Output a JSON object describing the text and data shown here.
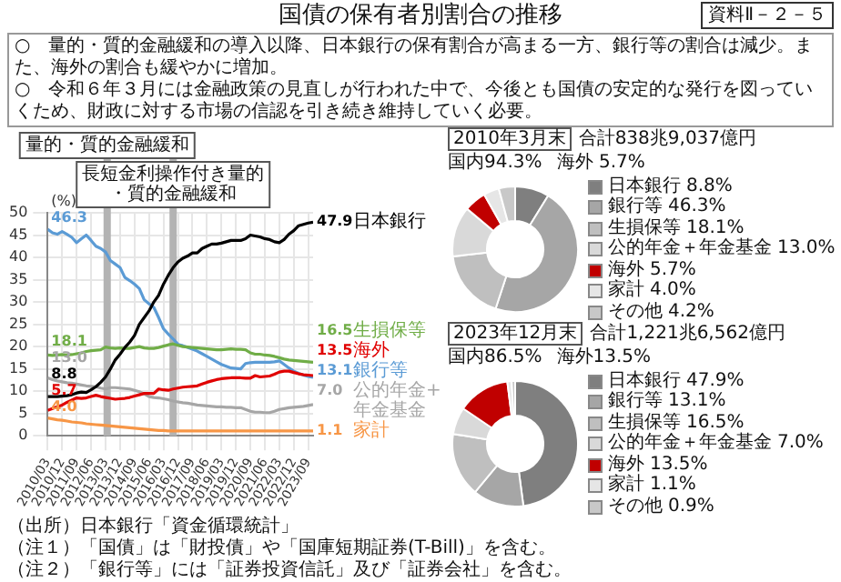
{
  "chart_data": [
    {
      "type": "line",
      "title": "国債の保有者別割合の推移",
      "annotations": [
        "資料Ⅱ－２－５",
        "○　量的・質的金融緩和の導入以降、日本銀行の保有割合が高まる一方、銀行等の割合は減少。また、海外の割合も緩やかに増加。",
        "○　令和６年３月には金融政策の見直しが行われた中で、今後とも国債の安定的な発行を図っていくため、財政に対する市場の信認を引き続き維持していく必要。",
        "（出所）日本銀行「資金循環統計」",
        "（注１）「国債」は「財投債」や「国庫短期証券(T-Bill)」を含む。",
        "（注２）「銀行等」には「証券投資信託」及び「証券会社」を含む。"
      ],
      "ylabel": "(%)",
      "x": [
        "2010-03",
        "2010-06",
        "2010-09",
        "2010-12",
        "2011-03",
        "2011-06",
        "2011-09",
        "2011-12",
        "2012-03",
        "2012-06",
        "2012-09",
        "2012-12",
        "2013-03",
        "2013-06",
        "2013-09",
        "2013-12",
        "2014-03",
        "2014-06",
        "2014-09",
        "2014-12",
        "2015-03",
        "2015-06",
        "2015-09",
        "2015-12",
        "2016-03",
        "2016-06",
        "2016-09",
        "2016-12",
        "2017-03",
        "2017-06",
        "2017-09",
        "2017-12",
        "2018-03",
        "2018-06",
        "2018-09",
        "2018-12",
        "2019-03",
        "2019-06",
        "2019-09",
        "2019-12",
        "2020-03",
        "2020-06",
        "2020-09",
        "2020-12",
        "2021-03",
        "2021-06",
        "2021-09",
        "2021-12",
        "2022-03",
        "2022-06",
        "2022-09",
        "2022-12",
        "2023-03",
        "2023-06",
        "2023-09",
        "2023-12"
      ],
      "xlim": [
        "2010-03",
        "2023-12"
      ],
      "xticks": [
        {
          "value": "2010-03",
          "label": "2010/03"
        },
        {
          "value": "2010-12",
          "label": "2010/12"
        },
        {
          "value": "2011-09",
          "label": "2011/09"
        },
        {
          "value": "2012-06",
          "label": "2012/06"
        },
        {
          "value": "2013-03",
          "label": "2013/03"
        },
        {
          "value": "2013-12",
          "label": "2013/12"
        },
        {
          "value": "2014-09",
          "label": "2014/09"
        },
        {
          "value": "2015-06",
          "label": "2015/06"
        },
        {
          "value": "2016-03",
          "label": "2016/03"
        },
        {
          "value": "2016-12",
          "label": "2016/12"
        },
        {
          "value": "2017-09",
          "label": "2017/09"
        },
        {
          "value": "2018-06",
          "label": "2018/06"
        },
        {
          "value": "2019-03",
          "label": "2019/03"
        },
        {
          "value": "2019-12",
          "label": "2019/12"
        },
        {
          "value": "2020-09",
          "label": "2020/09"
        },
        {
          "value": "2021-06",
          "label": "2021/06"
        },
        {
          "value": "2022-03",
          "label": "2022/03"
        },
        {
          "value": "2022-12",
          "label": "2022/12"
        },
        {
          "value": "2023-09",
          "label": "2023/09"
        }
      ],
      "ylim": [
        0,
        50
      ],
      "yticks": [
        0,
        5,
        10,
        15,
        20,
        25,
        30,
        35,
        40,
        45,
        50
      ],
      "grid": true,
      "ref_lines": [
        {
          "axis": "x",
          "value": "2013-04",
          "label": "量的・質的金融緩和",
          "color": "#b3b3b3"
        },
        {
          "axis": "x",
          "value": "2016-09",
          "label": "長短金利操作付き量的・質的金融緩和",
          "color": "#b3b3b3"
        }
      ],
      "series": [
        {
          "name": "日本銀行",
          "color": "#000000",
          "values": [
            8.8,
            8.8,
            8.8,
            8.9,
            9.0,
            9.2,
            9.6,
            9.8,
            9.7,
            10.3,
            11.0,
            12.0,
            13.2,
            15.0,
            17.0,
            18.3,
            19.8,
            21.0,
            22.5,
            25.0,
            26.5,
            28.0,
            30.0,
            31.5,
            34.0,
            36.0,
            37.7,
            39.0,
            39.8,
            40.3,
            41.0,
            41.0,
            42.0,
            42.5,
            43.0,
            43.0,
            43.2,
            43.5,
            43.8,
            43.8,
            43.8,
            44.2,
            45.0,
            44.8,
            44.6,
            44.2,
            44.0,
            43.5,
            43.3,
            44.0,
            45.2,
            46.0,
            47.1,
            47.4,
            47.7,
            47.9
          ],
          "value_labels": [
            "8.8",
            null,
            null,
            null,
            null,
            null,
            null,
            null,
            null,
            null,
            null,
            null,
            null,
            null,
            null,
            null,
            null,
            null,
            null,
            null,
            null,
            null,
            null,
            null,
            null,
            null,
            null,
            null,
            null,
            null,
            null,
            null,
            null,
            null,
            null,
            null,
            null,
            null,
            null,
            null,
            null,
            null,
            null,
            null,
            null,
            null,
            null,
            null,
            null,
            null,
            null,
            null,
            null,
            null,
            null,
            "47.9"
          ]
        },
        {
          "name": "生損保等",
          "color": "#70ad47",
          "values": [
            18.1,
            18.0,
            18.1,
            18.2,
            18.1,
            18.2,
            18.4,
            18.6,
            18.9,
            19.1,
            19.2,
            19.3,
            19.9,
            19.7,
            19.6,
            19.7,
            19.6,
            19.6,
            19.8,
            20.0,
            19.7,
            19.6,
            19.6,
            19.8,
            20.1,
            20.4,
            20.6,
            20.3,
            20.0,
            19.9,
            19.8,
            19.7,
            19.6,
            19.5,
            19.4,
            19.3,
            19.3,
            19.4,
            19.5,
            19.4,
            19.4,
            19.3,
            18.6,
            18.3,
            18.3,
            18.1,
            18.0,
            17.8,
            17.5,
            17.2,
            17.0,
            16.9,
            16.8,
            16.7,
            16.6,
            16.5
          ],
          "value_labels": [
            "18.1",
            null,
            null,
            null,
            null,
            null,
            null,
            null,
            null,
            null,
            null,
            null,
            null,
            null,
            null,
            null,
            null,
            null,
            null,
            null,
            null,
            null,
            null,
            null,
            null,
            null,
            null,
            null,
            null,
            null,
            null,
            null,
            null,
            null,
            null,
            null,
            null,
            null,
            null,
            null,
            null,
            null,
            null,
            null,
            null,
            null,
            null,
            null,
            null,
            null,
            null,
            null,
            null,
            null,
            null,
            "16.5"
          ]
        },
        {
          "name": "海外",
          "color": "#e00000",
          "values": [
            5.7,
            6.1,
            6.5,
            6.9,
            7.5,
            8.0,
            8.5,
            8.4,
            8.5,
            8.8,
            9.1,
            8.8,
            8.6,
            8.4,
            8.2,
            8.3,
            8.4,
            8.6,
            8.9,
            9.2,
            9.5,
            9.5,
            9.5,
            10.5,
            10.3,
            10.2,
            10.5,
            10.7,
            10.9,
            11.0,
            11.1,
            11.2,
            11.6,
            12.0,
            12.3,
            12.6,
            12.8,
            12.9,
            13.0,
            13.0,
            13.0,
            12.9,
            12.9,
            13.5,
            13.2,
            13.3,
            13.4,
            13.8,
            14.3,
            14.5,
            14.5,
            14.2,
            13.9,
            13.7,
            13.6,
            13.5
          ],
          "value_labels": [
            "5.7",
            null,
            null,
            null,
            null,
            null,
            null,
            null,
            null,
            null,
            null,
            null,
            null,
            null,
            null,
            null,
            null,
            null,
            null,
            null,
            null,
            null,
            null,
            null,
            null,
            null,
            null,
            null,
            null,
            null,
            null,
            null,
            null,
            null,
            null,
            null,
            null,
            null,
            null,
            null,
            null,
            null,
            null,
            null,
            null,
            null,
            null,
            null,
            null,
            null,
            null,
            null,
            null,
            null,
            null,
            "13.5"
          ]
        },
        {
          "name": "銀行等",
          "color": "#5b9bd5",
          "values": [
            46.3,
            45.5,
            45.2,
            45.8,
            45.2,
            44.5,
            43.3,
            44.2,
            45.0,
            43.8,
            42.5,
            42.0,
            41.2,
            39.3,
            38.5,
            37.7,
            35.5,
            34.8,
            34.0,
            33.0,
            30.5,
            29.6,
            28.8,
            26.5,
            24.0,
            22.8,
            21.7,
            20.5,
            20.2,
            19.8,
            19.4,
            19.0,
            18.4,
            17.8,
            17.2,
            16.6,
            16.0,
            15.6,
            15.2,
            15.1,
            15.0,
            16.2,
            16.4,
            16.5,
            16.5,
            16.5,
            16.5,
            16.6,
            16.8,
            16.0,
            15.2,
            14.5,
            14.0,
            13.6,
            13.3,
            13.1
          ],
          "value_labels": [
            "46.3",
            null,
            null,
            null,
            null,
            null,
            null,
            null,
            null,
            null,
            null,
            null,
            null,
            null,
            null,
            null,
            null,
            null,
            null,
            null,
            null,
            null,
            null,
            null,
            null,
            null,
            null,
            null,
            null,
            null,
            null,
            null,
            null,
            null,
            null,
            null,
            null,
            null,
            null,
            null,
            null,
            null,
            null,
            null,
            null,
            null,
            null,
            null,
            null,
            null,
            null,
            null,
            null,
            null,
            null,
            "13.1"
          ]
        },
        {
          "name": "公的年金+年金基金",
          "color": "#a6a6a6",
          "values": [
            13.0,
            12.6,
            12.3,
            12.1,
            11.9,
            11.8,
            11.6,
            11.4,
            11.2,
            11.1,
            11.0,
            10.7,
            10.5,
            10.8,
            10.8,
            10.7,
            10.6,
            10.5,
            10.2,
            9.9,
            9.4,
            8.8,
            8.6,
            8.5,
            8.3,
            8.1,
            7.8,
            7.6,
            7.4,
            7.3,
            7.1,
            6.9,
            6.8,
            6.7,
            6.6,
            6.5,
            6.5,
            6.4,
            6.4,
            6.3,
            6.3,
            5.9,
            5.5,
            5.3,
            5.3,
            5.2,
            5.2,
            5.5,
            5.9,
            6.1,
            6.3,
            6.4,
            6.5,
            6.6,
            6.8,
            7.0
          ],
          "value_labels": [
            "13.0",
            null,
            null,
            null,
            null,
            null,
            null,
            null,
            null,
            null,
            null,
            null,
            null,
            null,
            null,
            null,
            null,
            null,
            null,
            null,
            null,
            null,
            null,
            null,
            null,
            null,
            null,
            null,
            null,
            null,
            null,
            null,
            null,
            null,
            null,
            null,
            null,
            null,
            null,
            null,
            null,
            null,
            null,
            null,
            null,
            null,
            null,
            null,
            null,
            null,
            null,
            null,
            null,
            null,
            null,
            "7.0"
          ]
        },
        {
          "name": "家計",
          "color": "#f79646",
          "values": [
            4.0,
            3.8,
            3.6,
            3.5,
            3.3,
            3.1,
            3.0,
            2.9,
            2.7,
            2.6,
            2.5,
            2.4,
            2.3,
            2.2,
            2.1,
            2.0,
            1.9,
            1.8,
            1.7,
            1.6,
            1.5,
            1.4,
            1.3,
            1.2,
            1.2,
            1.1,
            1.1,
            1.1,
            1.1,
            1.1,
            1.1,
            1.1,
            1.1,
            1.1,
            1.1,
            1.1,
            1.1,
            1.1,
            1.1,
            1.1,
            1.1,
            1.1,
            1.1,
            1.1,
            1.1,
            1.1,
            1.1,
            1.1,
            1.1,
            1.1,
            1.1,
            1.1,
            1.1,
            1.1,
            1.1,
            1.1
          ],
          "value_labels": [
            "4.0",
            null,
            null,
            null,
            null,
            null,
            null,
            null,
            null,
            null,
            null,
            null,
            null,
            null,
            null,
            null,
            null,
            null,
            null,
            null,
            null,
            null,
            null,
            null,
            null,
            null,
            null,
            null,
            null,
            null,
            null,
            null,
            null,
            null,
            null,
            null,
            null,
            null,
            null,
            null,
            null,
            null,
            null,
            null,
            null,
            null,
            null,
            null,
            null,
            null,
            null,
            null,
            null,
            null,
            null,
            "1.1"
          ]
        }
      ]
    },
    {
      "type": "donut",
      "title": "2010年3月末",
      "annotations": [
        "合計",
        "838兆9,037億円",
        "国内94.3%",
        "海外 5.7%"
      ],
      "legend": "right",
      "categories": [
        "日本銀行",
        "銀行等",
        "生損保等",
        "公的年金＋年金基金",
        "海外",
        "家計",
        "その他"
      ],
      "values": [
        8.8,
        46.3,
        18.1,
        13.0,
        5.7,
        4.0,
        4.2
      ],
      "value_labels": [
        "8.8%",
        "46.3%",
        "18.1%",
        "13.0%",
        "5.7%",
        "4.0%",
        "4.2%"
      ],
      "colors": [
        "#7f7f7f",
        "#a6a6a6",
        "#bfbfbf",
        "#d9d9d9",
        "#c00000",
        "#e6e6e6",
        "#c8c8c8"
      ]
    },
    {
      "type": "donut",
      "title": "2023年12月末",
      "annotations": [
        "合計",
        "1,221兆6,562億円",
        "国内86.5%",
        "海外13.5%"
      ],
      "legend": "right",
      "categories": [
        "日本銀行",
        "銀行等",
        "生損保等",
        "公的年金＋年金基金",
        "海外",
        "家計",
        "その他"
      ],
      "values": [
        47.9,
        13.1,
        16.5,
        7.0,
        13.5,
        1.1,
        0.9
      ],
      "value_labels": [
        "47.9%",
        "13.1%",
        "16.5%",
        "7.0%",
        "13.5%",
        "1.1%",
        "0.9%"
      ],
      "colors": [
        "#7f7f7f",
        "#a6a6a6",
        "#bfbfbf",
        "#d9d9d9",
        "#c00000",
        "#e6e6e6",
        "#c8c8c8"
      ]
    }
  ]
}
